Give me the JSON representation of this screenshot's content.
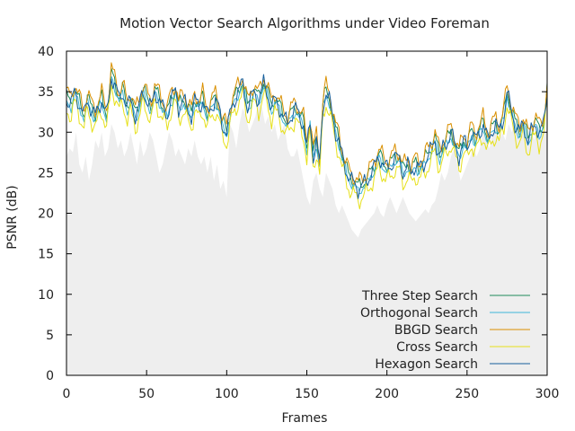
{
  "chart_data": {
    "type": "line",
    "title": "Motion Vector Search Algorithms under Video Foreman",
    "xlabel": "Frames",
    "ylabel": "PSNR (dB)",
    "xlim": [
      0,
      300
    ],
    "ylim": [
      0,
      40
    ],
    "xticks": [
      0,
      50,
      100,
      150,
      200,
      250,
      300
    ],
    "yticks": [
      0,
      5,
      10,
      15,
      20,
      25,
      30,
      35,
      40
    ],
    "grid": false,
    "legend_position": "bottom-right",
    "background_area": {
      "color": "#eeeeee",
      "x": [
        0,
        2,
        4,
        6,
        8,
        10,
        12,
        14,
        16,
        18,
        20,
        22,
        24,
        26,
        28,
        30,
        32,
        34,
        36,
        38,
        40,
        42,
        44,
        46,
        48,
        50,
        52,
        54,
        56,
        58,
        60,
        62,
        64,
        66,
        68,
        70,
        72,
        74,
        76,
        78,
        80,
        82,
        84,
        86,
        88,
        90,
        92,
        94,
        96,
        98,
        100,
        102,
        104,
        106,
        108,
        110,
        112,
        114,
        116,
        118,
        120,
        122,
        124,
        126,
        128,
        130,
        132,
        134,
        136,
        138,
        140,
        142,
        144,
        146,
        148,
        150,
        152,
        154,
        156,
        158,
        160,
        162,
        164,
        166,
        168,
        170,
        172,
        174,
        176,
        178,
        180,
        182,
        184,
        186,
        188,
        190,
        192,
        194,
        196,
        198,
        200,
        202,
        204,
        206,
        208,
        210,
        212,
        214,
        216,
        218,
        220,
        222,
        224,
        226,
        228,
        230,
        232,
        234,
        236,
        238,
        240,
        242,
        244,
        246,
        248,
        250,
        252,
        254,
        256,
        258,
        260,
        262,
        264,
        266,
        268,
        270,
        272,
        274,
        276,
        278,
        280,
        282,
        284,
        286,
        288,
        290,
        292,
        294,
        296,
        298,
        300
      ],
      "y": [
        27,
        28,
        27.5,
        30,
        26,
        25,
        27,
        24,
        26,
        29,
        28,
        30,
        27,
        28,
        31,
        30,
        28,
        29,
        27,
        28,
        30,
        28,
        26,
        29,
        27,
        28,
        30,
        29,
        27,
        25,
        26,
        28,
        30,
        29,
        27,
        28,
        27,
        26,
        28,
        27,
        29,
        27,
        26,
        27,
        25,
        27,
        24,
        26,
        23,
        24,
        22,
        31,
        30,
        28,
        31,
        33,
        32,
        30,
        31,
        32,
        34,
        33,
        31,
        32,
        30,
        31,
        29,
        30,
        31,
        28,
        27,
        27,
        28,
        26,
        24,
        22,
        21,
        24,
        25,
        23,
        22,
        25,
        24,
        23,
        21,
        20,
        21,
        20,
        19,
        18,
        17.5,
        17,
        18,
        18.5,
        19,
        19.5,
        20,
        21,
        20,
        19.5,
        21,
        22,
        21,
        20,
        21,
        22,
        21,
        20,
        19.5,
        19,
        19.5,
        20,
        20.5,
        20,
        21,
        21.5,
        23,
        25,
        24,
        25,
        27,
        28,
        26,
        24,
        25,
        26,
        27,
        28,
        27,
        28,
        30,
        29,
        28,
        30,
        31,
        29,
        30,
        29,
        31,
        30,
        32,
        31,
        30,
        29,
        31,
        30,
        29,
        31,
        30,
        30,
        30
      ]
    },
    "series": [
      {
        "name": "Three Step Search",
        "color": "#1e8a5a",
        "offset": 0.3,
        "amp": 0.9,
        "phase": 1.1
      },
      {
        "name": "Orthogonal Search",
        "color": "#3fb6d8",
        "offset": -0.3,
        "amp": 0.7,
        "phase": 2.3
      },
      {
        "name": "BBGD Search",
        "color": "#d98f00",
        "offset": 0.9,
        "amp": 1.0,
        "phase": 0.4
      },
      {
        "name": "Cross Search",
        "color": "#e6e01a",
        "offset": -1.4,
        "amp": 1.1,
        "phase": 3.0
      },
      {
        "name": "Hexagon Search",
        "color": "#155e9c",
        "offset": 0.0,
        "amp": 1.0,
        "phase": 4.2
      }
    ],
    "base_curve": {
      "x": [
        0,
        3,
        5,
        7,
        9,
        11,
        13,
        15,
        18,
        20,
        22,
        25,
        27,
        28,
        30,
        33,
        35,
        38,
        40,
        43,
        45,
        48,
        50,
        53,
        55,
        58,
        60,
        63,
        65,
        68,
        70,
        73,
        75,
        78,
        80,
        83,
        85,
        88,
        90,
        93,
        95,
        97,
        100,
        103,
        105,
        107,
        110,
        113,
        115,
        117,
        120,
        123,
        125,
        128,
        130,
        133,
        135,
        138,
        140,
        143,
        145,
        148,
        150,
        152,
        154,
        156,
        158,
        160,
        162,
        164,
        166,
        168,
        170,
        172,
        175,
        178,
        180,
        182,
        185,
        188,
        190,
        193,
        195,
        198,
        200,
        203,
        205,
        208,
        210,
        213,
        215,
        218,
        220,
        223,
        225,
        228,
        230,
        233,
        235,
        238,
        240,
        243,
        245,
        248,
        250,
        253,
        255,
        258,
        260,
        263,
        265,
        268,
        270,
        273,
        275,
        277,
        280,
        283,
        285,
        288,
        290,
        293,
        295,
        298,
        300
      ],
      "y": [
        34,
        33.5,
        35,
        34,
        33,
        32,
        34,
        33,
        32,
        33,
        34,
        32,
        35,
        37,
        36,
        34,
        35,
        33,
        34,
        32,
        33,
        35,
        34,
        33,
        35,
        34,
        33,
        32,
        34,
        35,
        33,
        34,
        33,
        32,
        34,
        33,
        34,
        32,
        33,
        34,
        33,
        31,
        30,
        33,
        34,
        35,
        36,
        33,
        34,
        35,
        34,
        36,
        35,
        33,
        34,
        33,
        32,
        31,
        32,
        33,
        32,
        31,
        28,
        31,
        27,
        29,
        26,
        33,
        35,
        34,
        32,
        30,
        29,
        27,
        25,
        24,
        23.5,
        23,
        23.5,
        24,
        25,
        26,
        27,
        26,
        25.5,
        26,
        27,
        26.5,
        25,
        26,
        25,
        26,
        25.5,
        26,
        27,
        28,
        29,
        27,
        28,
        29,
        30,
        28,
        27,
        29,
        28,
        30,
        29,
        30,
        31,
        29,
        30,
        31,
        30,
        32,
        35,
        33,
        31,
        30,
        31,
        29,
        30,
        31,
        30,
        31,
        35
      ]
    }
  }
}
